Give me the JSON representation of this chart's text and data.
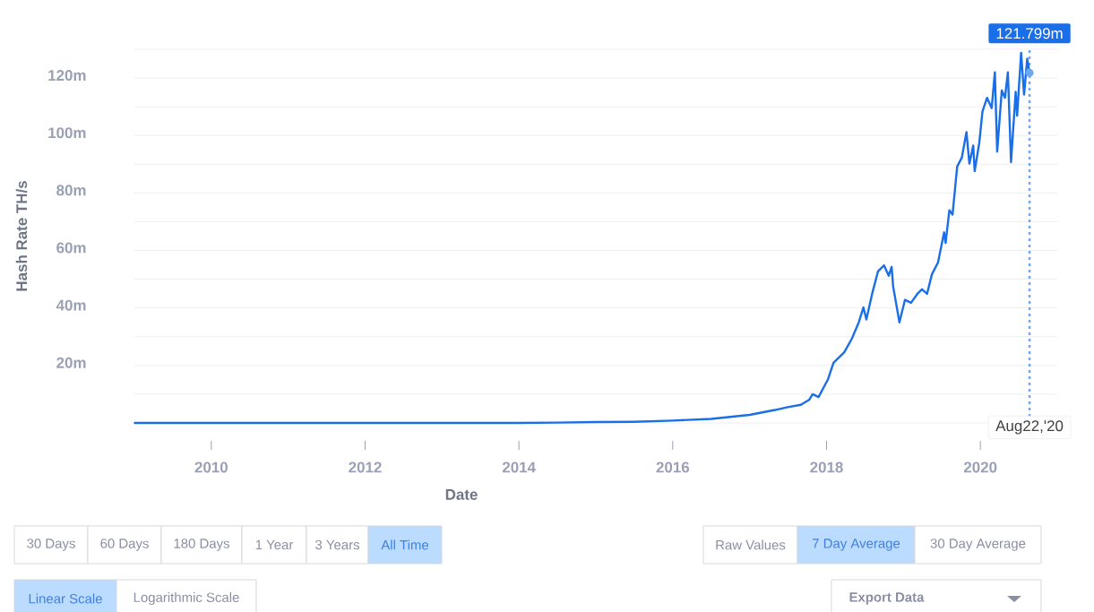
{
  "chart_data": {
    "type": "line",
    "xlabel": "Date",
    "ylabel": "Hash Rate TH/s",
    "x": [
      "2009-01-03",
      "2011-01-01",
      "2013-01-01",
      "2014-01-01",
      "2014-07-01",
      "2015-01-01",
      "2015-07-01",
      "2016-01-01",
      "2016-07-01",
      "2017-01-01",
      "2017-05-01",
      "2017-07-01",
      "2017-09-01",
      "2017-10-10",
      "2017-10-27",
      "2017-11-24",
      "2018-01-08",
      "2018-02-03",
      "2018-03-26",
      "2018-05-01",
      "2018-06-03",
      "2018-06-25",
      "2018-07-09",
      "2018-08-07",
      "2018-09-02",
      "2018-10-01",
      "2018-10-23",
      "2018-11-06",
      "2018-11-13",
      "2018-12-13",
      "2019-01-08",
      "2019-02-06",
      "2019-03-08",
      "2019-03-30",
      "2019-04-23",
      "2019-05-16",
      "2019-06-14",
      "2019-07-13",
      "2019-07-20",
      "2019-08-07",
      "2019-08-22",
      "2019-09-13",
      "2019-10-05",
      "2019-10-27",
      "2019-11-10",
      "2019-11-28",
      "2019-12-05",
      "2019-12-27",
      "2020-01-11",
      "2020-02-02",
      "2020-02-24",
      "2020-03-10",
      "2020-03-21",
      "2020-04-12",
      "2020-04-27",
      "2020-05-11",
      "2020-05-26",
      "2020-06-17",
      "2020-06-24",
      "2020-07-13",
      "2020-07-27",
      "2020-08-11",
      "2020-08-22"
    ],
    "series": [
      {
        "color": "#1a6fe8",
        "values": [
          0,
          0,
          0,
          0,
          0.1,
          0.3,
          0.4,
          0.8,
          1.4,
          2.8,
          4.5,
          5.5,
          6.3,
          8,
          10,
          9,
          15.2,
          20.9,
          24.6,
          29.3,
          35,
          40.2,
          36,
          45.4,
          52.7,
          54.8,
          51.2,
          54.3,
          47.5,
          35,
          42.8,
          41.8,
          44.9,
          46.5,
          44.9,
          51.7,
          55.8,
          66.3,
          62.6,
          74,
          72.5,
          89.2,
          92.3,
          101.2,
          90.2,
          96.5,
          87.6,
          97.5,
          108.4,
          113.1,
          109.5,
          122,
          94.4,
          115.7,
          113.1,
          122,
          90.7,
          115.2,
          106.9,
          128.8,
          114.2,
          126.7,
          121.799
        ]
      }
    ],
    "xlim": [
      "2009-01-01",
      "2021-01-01"
    ],
    "xticks": [
      {
        "value": "2010-01-01",
        "label": "2010"
      },
      {
        "value": "2012-01-01",
        "label": "2012"
      },
      {
        "value": "2014-01-01",
        "label": "2014"
      },
      {
        "value": "2016-01-01",
        "label": "2016"
      },
      {
        "value": "2018-01-01",
        "label": "2018"
      },
      {
        "value": "2020-01-01",
        "label": "2020"
      }
    ],
    "ylim": [
      0,
      130
    ],
    "yticks": [
      {
        "value": 0,
        "label": null
      },
      {
        "value": 10,
        "label": null
      },
      {
        "value": 20,
        "label": "20m"
      },
      {
        "value": 30,
        "label": null
      },
      {
        "value": 40,
        "label": "40m"
      },
      {
        "value": 50,
        "label": null
      },
      {
        "value": 60,
        "label": "60m"
      },
      {
        "value": 70,
        "label": null
      },
      {
        "value": 80,
        "label": "80m"
      },
      {
        "value": 90,
        "label": null
      },
      {
        "value": 100,
        "label": "100m"
      },
      {
        "value": 110,
        "label": null
      },
      {
        "value": 120,
        "label": "120m"
      },
      {
        "value": 130,
        "label": null
      }
    ],
    "grid": "y",
    "ref_lines": [
      {
        "axis": "x",
        "value": "2020-08-22",
        "label": "Aug22,'20",
        "color": "#6fa8f0",
        "line_style": "dotted"
      }
    ],
    "annotations": [
      {
        "text": "121.799m",
        "x": "2020-08-22",
        "y": 121.799
      },
      "30 Days",
      "60 Days",
      "180 Days",
      "1 Year",
      "3 Years",
      "All Time",
      "Raw Values",
      "7 Day Average",
      "30 Day Average",
      "Linear Scale",
      "Logarithmic Scale",
      "Export Data"
    ]
  }
}
